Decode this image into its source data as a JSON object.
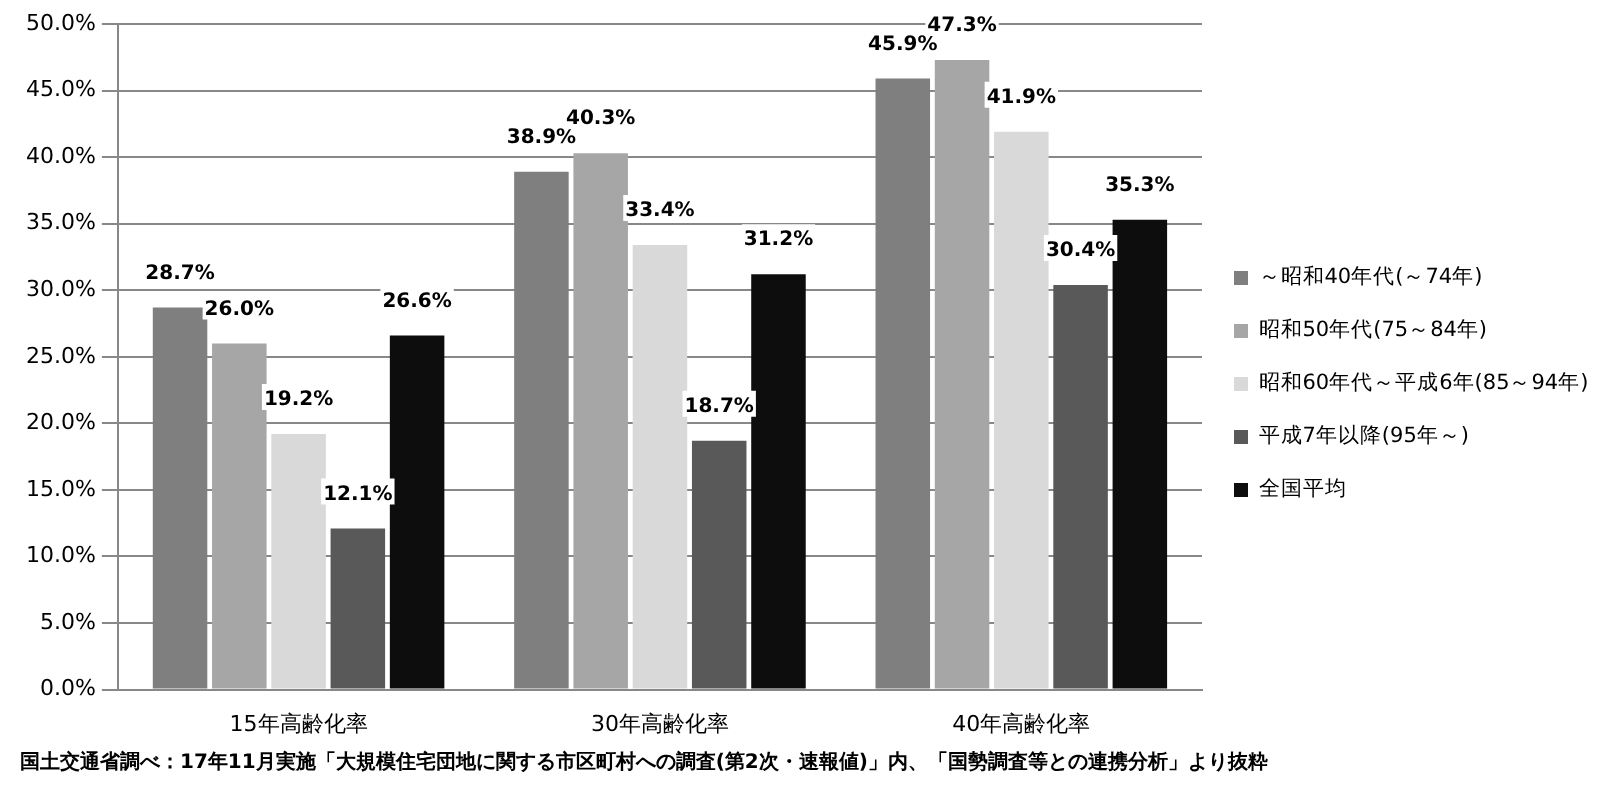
{
  "chart_data": {
    "type": "bar",
    "categories": [
      "15年高齢化率",
      "30年高齢化率",
      "40年高齢化率"
    ],
    "series": [
      {
        "name": "～昭和40年代(～74年)",
        "color": "#7f7f7f",
        "values": [
          28.7,
          38.9,
          45.9
        ],
        "value_labels": [
          "28.7%",
          "38.9%",
          "45.9%"
        ]
      },
      {
        "name": "昭和50年代(75～84年)",
        "color": "#a6a6a6",
        "values": [
          26.0,
          40.3,
          47.3
        ],
        "value_labels": [
          "26.0%",
          "40.3%",
          "47.3%"
        ]
      },
      {
        "name": "昭和60年代～平成6年(85～94年)",
        "color": "#d9d9d9",
        "values": [
          19.2,
          33.4,
          41.9
        ],
        "value_labels": [
          "19.2%",
          "33.4%",
          "41.9%"
        ]
      },
      {
        "name": "平成7年以降(95年～)",
        "color": "#595959",
        "values": [
          12.1,
          18.7,
          30.4
        ],
        "value_labels": [
          "12.1%",
          "18.7%",
          "30.4%"
        ]
      },
      {
        "name": "全国平均",
        "color": "#0d0d0d",
        "values": [
          26.6,
          31.2,
          35.3
        ],
        "value_labels": [
          "26.6%",
          "31.2%",
          "35.3%"
        ]
      }
    ],
    "ylim": [
      0,
      50
    ],
    "yticks": [
      {
        "value": 0,
        "label": "0.0%"
      },
      {
        "value": 5,
        "label": "5.0%"
      },
      {
        "value": 10,
        "label": "10.0%"
      },
      {
        "value": 15,
        "label": "15.0%"
      },
      {
        "value": 20,
        "label": "20.0%"
      },
      {
        "value": 25,
        "label": "25.0%"
      },
      {
        "value": 30,
        "label": "30.0%"
      },
      {
        "value": 35,
        "label": "35.0%"
      },
      {
        "value": 40,
        "label": "40.0%"
      },
      {
        "value": 45,
        "label": "45.0%"
      },
      {
        "value": 50,
        "label": "50.0%"
      }
    ],
    "grid": "y",
    "legend": "right",
    "annotations": [
      "国土交通省調べ：17年11月実施「大規模住宅団地に関する市区町村への調査(第2次・速報値)」内、「国勢調査等との連携分析」より抜粋"
    ]
  }
}
